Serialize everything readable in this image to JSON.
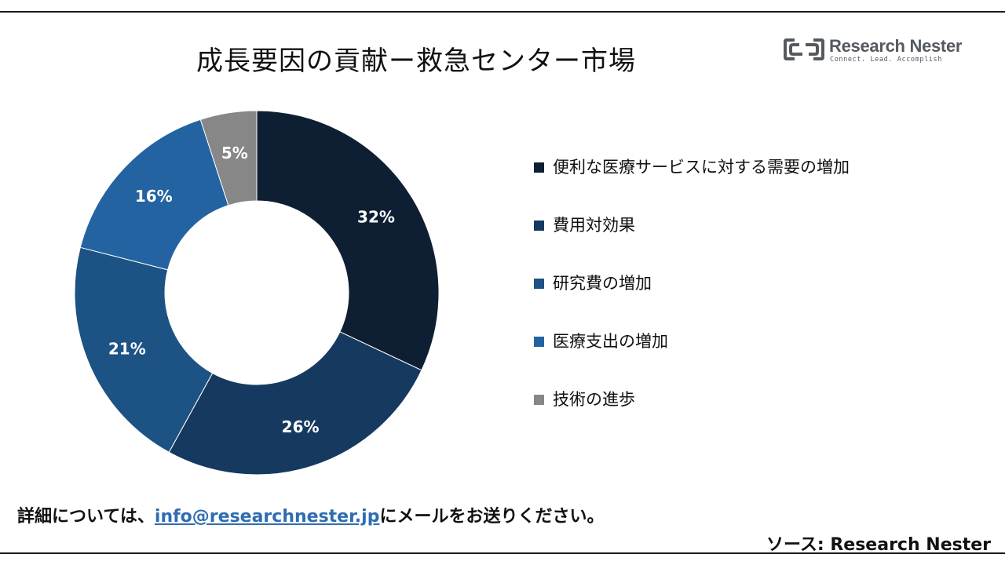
{
  "title": "成長要因の貢献ー救急センター市場",
  "logo": {
    "name": "Research Nester",
    "tagline": "Connect. Lead. Accomplish"
  },
  "chart_data": {
    "type": "pie",
    "donut": true,
    "title": "成長要因の貢献ー救急センター市場",
    "legend_position": "right",
    "slices": [
      {
        "label": "便利な医療サービスに対する需要の増加",
        "value": 32,
        "display": "32%",
        "color": "#0f1f33"
      },
      {
        "label": "費用対効果",
        "value": 26,
        "display": "26%",
        "color": "#163a5f"
      },
      {
        "label": "研究費の増加",
        "value": 21,
        "display": "21%",
        "color": "#1c5284"
      },
      {
        "label": "医療支出の増加",
        "value": 16,
        "display": "16%",
        "color": "#2463a1"
      },
      {
        "label": "技術の進歩",
        "value": 5,
        "display": "5%",
        "color": "#878787"
      }
    ]
  },
  "footer": {
    "prefix": "詳細については、",
    "email": "info@researchnester.jp",
    "suffix": "にメールをお送りください。"
  },
  "source": "ソース: Research Nester"
}
